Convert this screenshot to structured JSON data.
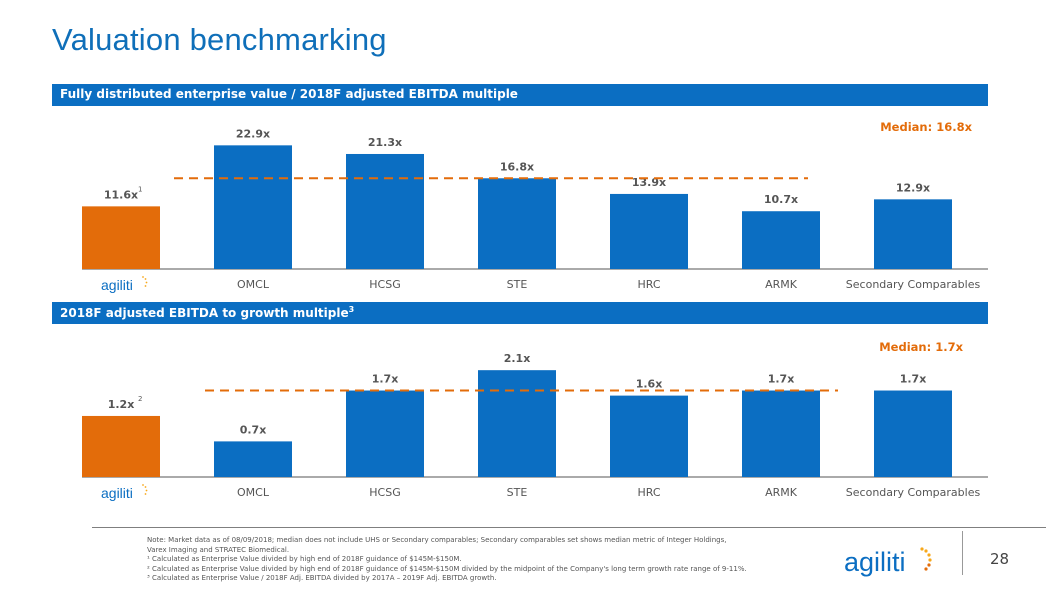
{
  "page": {
    "title": "Valuation benchmarking",
    "page_number": "28",
    "brand_name": "agiliti"
  },
  "colors": {
    "primary_blue": "#0b6ec2",
    "highlight_orange": "#e36c0a",
    "title_blue": "#0f6fb9"
  },
  "chart_data": [
    {
      "type": "bar",
      "header": "Fully distributed enterprise value / 2018F adjusted EBITDA multiple",
      "categories": [
        "agiliti",
        "OMCL",
        "HCSG",
        "STE",
        "HRC",
        "ARMK",
        "Secondary Comparables"
      ],
      "values": [
        11.6,
        22.9,
        21.3,
        16.8,
        13.9,
        10.7,
        12.9
      ],
      "value_labels": [
        "11.6x",
        "22.9x",
        "21.3x",
        "16.8x",
        "13.9x",
        "10.7x",
        "12.9x"
      ],
      "footnote_marks": [
        "1",
        "",
        "",
        "",
        "",
        "",
        ""
      ],
      "highlight_index": 0,
      "median": 16.8,
      "median_label": "Median: 16.8x",
      "ylim": [
        0,
        25
      ],
      "grid": false,
      "legend": "none"
    },
    {
      "type": "bar",
      "header": "2018F adjusted EBITDA to growth multiple",
      "header_sup": "3",
      "categories": [
        "agiliti",
        "OMCL",
        "HCSG",
        "STE",
        "HRC",
        "ARMK",
        "Secondary Comparables"
      ],
      "values": [
        1.2,
        0.7,
        1.7,
        2.1,
        1.6,
        1.7,
        1.7
      ],
      "value_labels": [
        "1.2x",
        "0.7x",
        "1.7x",
        "2.1x",
        "1.6x",
        "1.7x",
        "1.7x"
      ],
      "footnote_marks": [
        "2",
        "",
        "",
        "",
        "",
        "",
        ""
      ],
      "highlight_index": 0,
      "median": 1.7,
      "median_label": "Median: 1.7x",
      "ylim": [
        0,
        2.3
      ],
      "grid": false,
      "legend": "none"
    }
  ],
  "notes": {
    "lines": [
      "Note: Market data as of 08/09/2018; median does not include UHS or Secondary comparables; Secondary comparables set shows median metric of Integer Holdings,",
      "Varex Imaging and STRATEC Biomedical.",
      "¹ Calculated as Enterprise Value divided by high end of 2018F guidance of $145M-$150M.",
      "² Calculated as Enterprise Value divided by high end of 2018F guidance of $145M-$150M divided by the midpoint of the Company's long term growth rate range of 9-11%.",
      "³ Calculated as Enterprise Value / 2018F Adj. EBITDA divided by 2017A – 2019F Adj. EBITDA growth."
    ]
  }
}
